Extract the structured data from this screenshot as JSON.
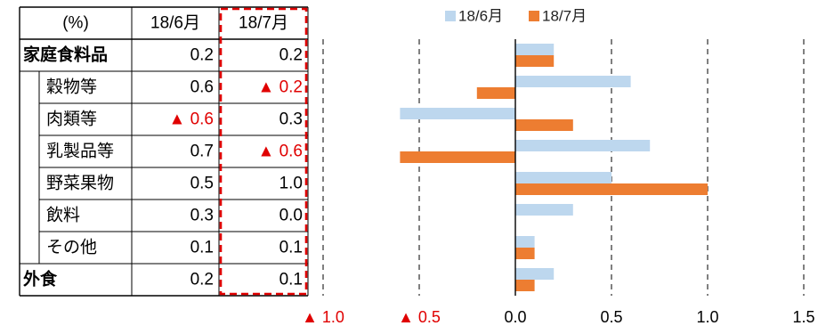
{
  "table": {
    "header": {
      "unit": "(%)",
      "col1": "18/6月",
      "col2": "18/7月"
    },
    "rows": [
      {
        "label": "家庭食料品",
        "v1": "0.2",
        "v2": "0.2",
        "bold": true,
        "indent": false
      },
      {
        "label": "穀物等",
        "v1": "0.6",
        "v2": "▲ 0.2",
        "bold": false,
        "indent": true
      },
      {
        "label": "肉類等",
        "v1": "▲ 0.6",
        "v2": "0.3",
        "bold": false,
        "indent": true
      },
      {
        "label": "乳製品等",
        "v1": "0.7",
        "v2": "▲ 0.6",
        "bold": false,
        "indent": true
      },
      {
        "label": "野菜果物",
        "v1": "0.5",
        "v2": "1.0",
        "bold": false,
        "indent": true
      },
      {
        "label": "飲料",
        "v1": "0.3",
        "v2": "0.0",
        "bold": false,
        "indent": true
      },
      {
        "label": "その他",
        "v1": "0.1",
        "v2": "0.1",
        "bold": false,
        "indent": true
      },
      {
        "label": "外食",
        "v1": "0.2",
        "v2": "0.1",
        "bold": true,
        "indent": false
      }
    ]
  },
  "colors": {
    "series1": "#bdd7ee",
    "series2": "#ed7d31",
    "negative_text": "#e00000",
    "highlight_border": "#e00000"
  },
  "chart_data": {
    "type": "bar",
    "orientation": "horizontal",
    "categories": [
      "家庭食料品",
      "穀物等",
      "肉類等",
      "乳製品等",
      "野菜果物",
      "飲料",
      "その他",
      "外食"
    ],
    "series": [
      {
        "name": "18/6月",
        "values": [
          0.2,
          0.6,
          -0.6,
          0.7,
          0.5,
          0.3,
          0.1,
          0.2
        ]
      },
      {
        "name": "18/7月",
        "values": [
          0.2,
          -0.2,
          0.3,
          -0.6,
          1.0,
          0.0,
          0.1,
          0.1
        ]
      }
    ],
    "xlim": [
      -1.0,
      1.5
    ],
    "xticks": [
      -1.0,
      -0.5,
      0.0,
      0.5,
      1.0,
      1.5
    ],
    "xtick_labels": [
      "▲ 1.0",
      "▲ 0.5",
      "0.0",
      "0.5",
      "1.0",
      "1.5"
    ],
    "legend_position": "top",
    "gridlines": "vertical-dashed"
  }
}
